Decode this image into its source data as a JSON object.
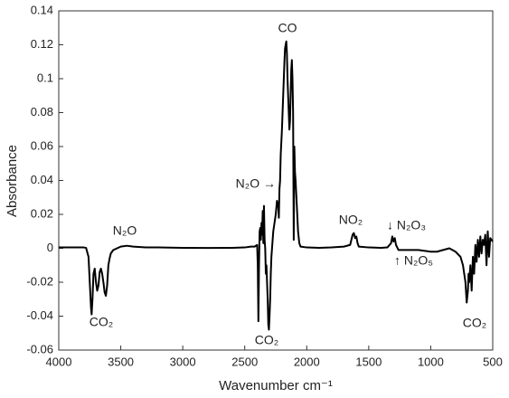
{
  "chart_data": {
    "type": "line",
    "xlabel": "Wavenumber cm⁻¹",
    "ylabel": "Absorbance",
    "xlim": [
      4000,
      500
    ],
    "ylim": [
      -0.06,
      0.14
    ],
    "xticks": [
      4000,
      3500,
      3000,
      2500,
      2000,
      1500,
      1000,
      500
    ],
    "yticks": [
      -0.06,
      -0.04,
      -0.02,
      0,
      0.02,
      0.04,
      0.06,
      0.08,
      0.1,
      0.12,
      0.14
    ],
    "annotations": [
      "CO",
      "N₂O →",
      "N₂O",
      "CO₂",
      "CO₂",
      "NO₂",
      "↓ N₂O₃",
      "↑ N₂O₅",
      "CO₂"
    ],
    "series": [
      {
        "color": "#000000",
        "x": [
          4000,
          3900,
          3800,
          3780,
          3760,
          3750,
          3740,
          3735,
          3728,
          3720,
          3710,
          3700,
          3690,
          3680,
          3670,
          3660,
          3650,
          3640,
          3630,
          3620,
          3610,
          3600,
          3590,
          3580,
          3560,
          3500,
          3450,
          3400,
          3300,
          3200,
          3000,
          2800,
          2600,
          2500,
          2450,
          2420,
          2400,
          2395,
          2390,
          2385,
          2380,
          2375,
          2370,
          2365,
          2360,
          2355,
          2350,
          2345,
          2340,
          2335,
          2330,
          2325,
          2320,
          2315,
          2310,
          2305,
          2300,
          2295,
          2290,
          2285,
          2280,
          2270,
          2260,
          2250,
          2240,
          2230,
          2225,
          2220,
          2215,
          2210,
          2200,
          2190,
          2180,
          2175,
          2170,
          2165,
          2160,
          2155,
          2150,
          2145,
          2140,
          2135,
          2130,
          2125,
          2120,
          2115,
          2110,
          2105,
          2100,
          2095,
          2090,
          2080,
          2070,
          2060,
          2050,
          2000,
          1900,
          1800,
          1700,
          1650,
          1630,
          1620,
          1610,
          1600,
          1590,
          1580,
          1500,
          1400,
          1350,
          1320,
          1310,
          1300,
          1290,
          1280,
          1260,
          1200,
          1100,
          1000,
          950,
          900,
          850,
          800,
          760,
          740,
          720,
          710,
          700,
          695,
          690,
          680,
          670,
          660,
          650,
          640,
          630,
          620,
          610,
          600,
          590,
          580,
          570,
          560,
          550,
          540,
          530,
          520,
          510,
          500
        ],
        "values": [
          0.0005,
          0.0005,
          0.0005,
          0.0003,
          -0.005,
          -0.02,
          -0.035,
          -0.039,
          -0.03,
          -0.015,
          -0.012,
          -0.02,
          -0.025,
          -0.022,
          -0.014,
          -0.012,
          -0.015,
          -0.02,
          -0.026,
          -0.028,
          -0.022,
          -0.01,
          -0.006,
          -0.003,
          -0.001,
          0.001,
          0.0015,
          0.001,
          0.0005,
          0.0005,
          0.0003,
          0.0002,
          0.0003,
          0.0005,
          0.001,
          0.001,
          0.002,
          -0.01,
          -0.043,
          -0.01,
          0.01,
          0.012,
          0.005,
          0.015,
          0.008,
          0.022,
          0.003,
          0.025,
          0.005,
          0,
          -0.015,
          -0.01,
          -0.02,
          -0.03,
          -0.045,
          -0.048,
          -0.04,
          -0.03,
          -0.015,
          -0.005,
          0,
          0.01,
          0.015,
          0.02,
          0.028,
          0.025,
          0.018,
          0.035,
          0.04,
          0.055,
          0.07,
          0.09,
          0.11,
          0.118,
          0.12,
          0.122,
          0.115,
          0.1,
          0.09,
          0.08,
          0.07,
          0.075,
          0.09,
          0.105,
          0.111,
          0.1,
          0.08,
          0.005,
          0.06,
          0.045,
          0.04,
          0.025,
          0.01,
          0.003,
          0.001,
          0.0005,
          0.0003,
          0.0005,
          0.001,
          0.002,
          0.008,
          0.009,
          0.006,
          0.007,
          0.003,
          0.001,
          0.0005,
          0.0003,
          0.0005,
          0.003,
          0.007,
          0.004,
          0.006,
          0.002,
          -0.001,
          -0.001,
          -0.001,
          -0.002,
          -0.002,
          -0.001,
          0,
          -0.002,
          -0.005,
          -0.01,
          -0.02,
          -0.032,
          -0.025,
          -0.015,
          -0.02,
          -0.01,
          -0.025,
          -0.005,
          -0.015,
          0.002,
          -0.008,
          0.005,
          -0.005,
          0.007,
          -0.003,
          0.005,
          0.002,
          0.008,
          -0.01,
          0.01,
          -0.005,
          0.006,
          0.005,
          0.004
        ]
      }
    ]
  }
}
